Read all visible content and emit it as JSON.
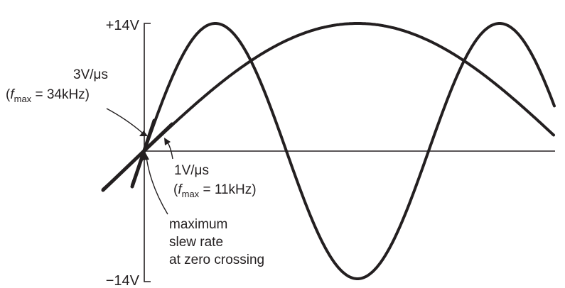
{
  "axis": {
    "top_label": "+14V",
    "bottom_label": "−14V"
  },
  "fast_slope": {
    "rate": "3V/μs",
    "f_symbol": "f",
    "f_sub": "max",
    "f_value": " = 34kHz)",
    "open_paren": "("
  },
  "slow_slope": {
    "rate": "1V/μs",
    "f_symbol": "f",
    "f_sub": "max",
    "f_value": " = 11kHz)",
    "open_paren": "("
  },
  "note": {
    "line1": "maximum",
    "line2": "slew rate",
    "line3": "at zero crossing"
  },
  "chart_data": {
    "type": "line",
    "ylim": [
      -14,
      14
    ],
    "yticks": [
      "+14V",
      "−14V"
    ],
    "series": [
      {
        "amplitude_V": 14,
        "slew_rate_at_zero_V_per_us": 3,
        "fmax_kHz": 34
      },
      {
        "amplitude_V": 14,
        "slew_rate_at_zero_V_per_us": 1,
        "fmax_kHz": 11
      }
    ],
    "colors": {
      "ink": "#231f20"
    }
  }
}
